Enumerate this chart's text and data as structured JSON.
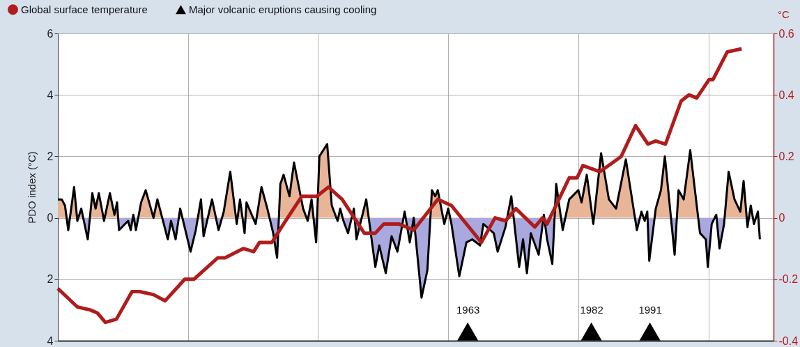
{
  "chart_data": {
    "type": "line",
    "ylabel": "PDO index (°C)",
    "y2label": "°C",
    "xlim": [
      1900,
      2010
    ],
    "xticks": [
      {
        "value": 1920,
        "label": null
      },
      {
        "value": 1940,
        "label": null
      },
      {
        "value": 1960,
        "label": null
      },
      1963,
      {
        "value": 1980,
        "label": null
      },
      1982,
      1991,
      {
        "value": 2000,
        "label": null
      }
    ],
    "ylim": [
      -4,
      6
    ],
    "yticks": [
      {
        "value": -4,
        "label": "4"
      },
      {
        "value": -2,
        "label": "2"
      },
      0,
      2,
      4,
      6
    ],
    "y2lim": [
      -0.4,
      0.6
    ],
    "y2ticks": [
      -0.4,
      -0.2,
      0,
      0.2,
      0.4,
      0.6
    ],
    "grid": true,
    "legend": "top left",
    "colors": [
      "#e8b598",
      "#a9a9e0"
    ],
    "series": [
      {
        "type": "area",
        "color": "#000000",
        "x": [
          1900.0,
          1900.6,
          1901.1,
          1901.6,
          1902.5,
          1903.0,
          1903.6,
          1904.6,
          1905.3,
          1905.8,
          1906.3,
          1907.1,
          1908.0,
          1908.7,
          1909.1,
          1909.4,
          1910.8,
          1911.2,
          1911.6,
          1912.0,
          1912.8,
          1913.5,
          1914.7,
          1915.3,
          1916.9,
          1917.4,
          1918.1,
          1918.8,
          1920.4,
          1921.2,
          1922.0,
          1922.4,
          1923.7,
          1924.7,
          1925.5,
          1926.5,
          1927.5,
          1928.0,
          1928.7,
          1929.0,
          1930.4,
          1931.3,
          1932.2,
          1933.1,
          1933.7,
          1934.2,
          1934.7,
          1935.6,
          1936.3,
          1937.7,
          1938.4,
          1939.0,
          1939.7,
          1940.2,
          1941.4,
          1942.1,
          1943.0,
          1943.4,
          1943.9,
          1944.6,
          1945.5,
          1945.9,
          1947.4,
          1948.8,
          1949.4,
          1950.4,
          1951.3,
          1952.2,
          1953.3,
          1954.1,
          1954.7,
          1955.9,
          1956.8,
          1957.5,
          1958.0,
          1958.4,
          1959.4,
          1960.0,
          1960.5,
          1961.7,
          1962.8,
          1963.7,
          1964.9,
          1965.4,
          1967.0,
          1967.6,
          1968.8,
          1969.7,
          1970.9,
          1971.5,
          1972.1,
          1972.7,
          1973.9,
          1974.7,
          1975.2,
          1976.0,
          1976.6,
          1977.6,
          1978.6,
          1980.0,
          1980.5,
          1981.3,
          1982.3,
          1983.5,
          1984.7,
          1985.8,
          1987.3,
          1989.0,
          1989.7,
          1990.2,
          1990.6,
          1990.9,
          1991.9,
          1992.7,
          1993.3,
          1994.8,
          1995.4,
          1996.2,
          1997.2,
          1998.7,
          1999.6,
          1999.9,
          2000.5,
          2001.2,
          2001.7,
          2002.4,
          2003.1,
          2004.0,
          2004.9,
          2005.4,
          2006.0,
          2006.5,
          2007.0,
          2007.6,
          2007.9
        ],
        "values": [
          0.6,
          0.6,
          0.4,
          -0.4,
          1.0,
          -0.1,
          0.3,
          -0.7,
          0.8,
          0.3,
          0.8,
          -0.1,
          0.8,
          0.1,
          0.5,
          -0.4,
          -0.1,
          -0.4,
          0.1,
          -0.4,
          0.5,
          0.9,
          0.0,
          0.6,
          -0.7,
          -0.1,
          -0.7,
          0.3,
          -1.1,
          -0.4,
          0.6,
          -0.6,
          0.6,
          -0.4,
          0.2,
          1.5,
          -0.2,
          0.6,
          -0.5,
          0.5,
          -0.2,
          1.0,
          0.3,
          -0.5,
          -1.3,
          1.1,
          1.4,
          0.7,
          1.8,
          0.3,
          -0.1,
          0.6,
          -0.8,
          2.0,
          2.4,
          0.4,
          -0.1,
          0.3,
          -0.1,
          -0.5,
          0.3,
          -0.7,
          0.6,
          -1.6,
          -0.9,
          -1.8,
          -0.6,
          -1.1,
          0.2,
          -0.8,
          0.0,
          -2.6,
          -1.7,
          0.9,
          0.7,
          0.9,
          -0.2,
          0.3,
          -0.2,
          -1.9,
          -0.8,
          -0.7,
          -0.9,
          -0.2,
          -0.5,
          -1.1,
          -0.3,
          0.7,
          -1.6,
          -0.7,
          -1.8,
          -0.5,
          -1.2,
          0.1,
          -0.7,
          -1.5,
          1.1,
          -0.4,
          0.6,
          0.9,
          0.5,
          1.4,
          -0.2,
          2.1,
          0.6,
          0.3,
          1.9,
          -0.4,
          0.2,
          -0.1,
          0.2,
          -1.4,
          0.3,
          0.9,
          2.0,
          -1.2,
          0.9,
          0.6,
          2.2,
          -0.5,
          -0.7,
          -1.6,
          -0.2,
          0.1,
          -1.0,
          -0.2,
          1.5,
          0.6,
          0.2,
          1.2,
          -0.3,
          0.4,
          -0.2,
          0.2,
          -0.7
        ]
      },
      {
        "name": "Global surface temperature",
        "type": "line",
        "axis": "y2",
        "color": "#b01c1c",
        "x": [
          1900,
          1903,
          1905,
          1906.1,
          1907.3,
          1909,
          1911.4,
          1912.6,
          1914.7,
          1916.5,
          1919.5,
          1920.9,
          1924.6,
          1925.7,
          1928.5,
          1930.1,
          1931,
          1932.9,
          1934.7,
          1937.5,
          1939.8,
          1941.6,
          1943.7,
          1947.1,
          1948.8,
          1950.1,
          1952.4,
          1954.7,
          1958.4,
          1960.5,
          1965.1,
          1967.2,
          1968.8,
          1970.4,
          1973.3,
          1974.5,
          1975.2,
          1978.6,
          1979.8,
          1980.7,
          1983.3,
          1985.3,
          1986.6,
          1988.8,
          1990.7,
          1991.9,
          1993.4,
          1995.8,
          1997,
          1998.2,
          2000.1,
          2000.7,
          2002.9,
          2005.1
        ],
        "values": [
          -0.23,
          -0.29,
          -0.3,
          -0.31,
          -0.34,
          -0.33,
          -0.24,
          -0.24,
          -0.25,
          -0.27,
          -0.2,
          -0.2,
          -0.13,
          -0.13,
          -0.1,
          -0.11,
          -0.08,
          -0.08,
          -0.02,
          0.07,
          0.07,
          0.1,
          0.06,
          -0.05,
          -0.05,
          -0.02,
          -0.02,
          -0.04,
          0.06,
          0.04,
          -0.08,
          0.0,
          -0.01,
          0.03,
          -0.03,
          0.0,
          -0.02,
          0.13,
          0.13,
          0.17,
          0.15,
          0.18,
          0.2,
          0.3,
          0.24,
          0.25,
          0.24,
          0.38,
          0.4,
          0.39,
          0.45,
          0.45,
          0.54,
          0.55
        ]
      },
      {
        "name": "Major volcanic eruptions causing cooling",
        "type": "scatter",
        "marker": "triangle",
        "color": "#000000",
        "x": [
          1963,
          1982,
          1991
        ],
        "values": [
          -3.7,
          -3.7,
          -3.7
        ]
      }
    ]
  }
}
